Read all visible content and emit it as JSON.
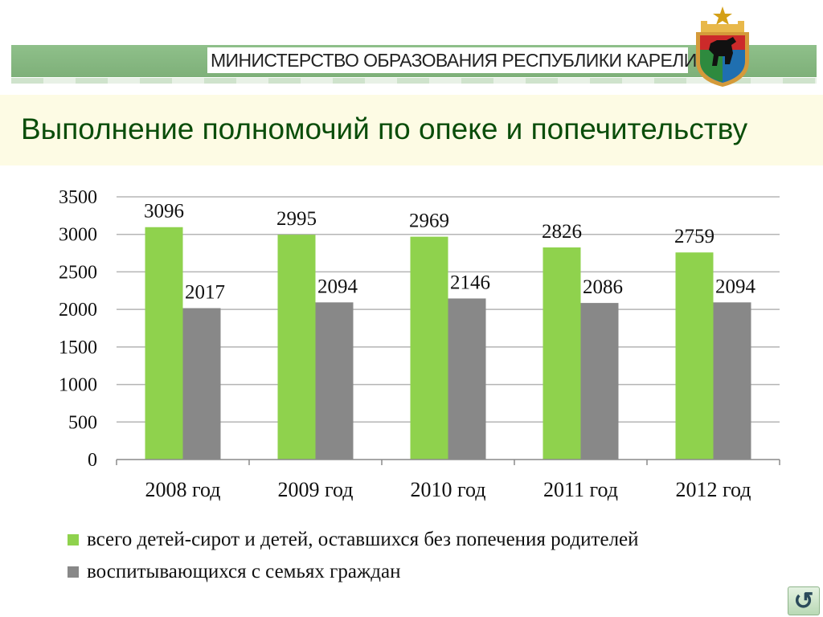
{
  "header": {
    "ministry": "МИНИСТЕРСТВО ОБРАЗОВАНИЯ РЕСПУБЛИКИ КАРЕЛИЯ",
    "emblem_icon": "karelia-coat-of-arms-icon"
  },
  "slide": {
    "title": "Выполнение полномочий по опеке и попечительству"
  },
  "colors": {
    "series_green": "#8fd24d",
    "series_gray": "#888888",
    "grid": "#b5b5b5",
    "banner": "#86b881"
  },
  "chart_data": {
    "type": "bar",
    "categories": [
      "2008 год",
      "2009 год",
      "2010 год",
      "2011 год",
      "2012 год"
    ],
    "series": [
      {
        "name": "всего детей-сирот и детей, оставшихся без попечения родителей",
        "values": [
          3096,
          2995,
          2969,
          2826,
          2759
        ]
      },
      {
        "name": "воспитывающихся с семьях граждан",
        "values": [
          2017,
          2094,
          2146,
          2086,
          2094
        ]
      }
    ],
    "title": "",
    "xlabel": "",
    "ylabel": "",
    "ylim": [
      0,
      3500
    ],
    "yticks": [
      "0",
      "500",
      "1000",
      "1500",
      "2000",
      "2500",
      "3000",
      "3500"
    ],
    "grid": true,
    "legend": "bottom-left"
  },
  "nav": {
    "return_label": "↺",
    "return_icon": "return-arrow-icon"
  }
}
